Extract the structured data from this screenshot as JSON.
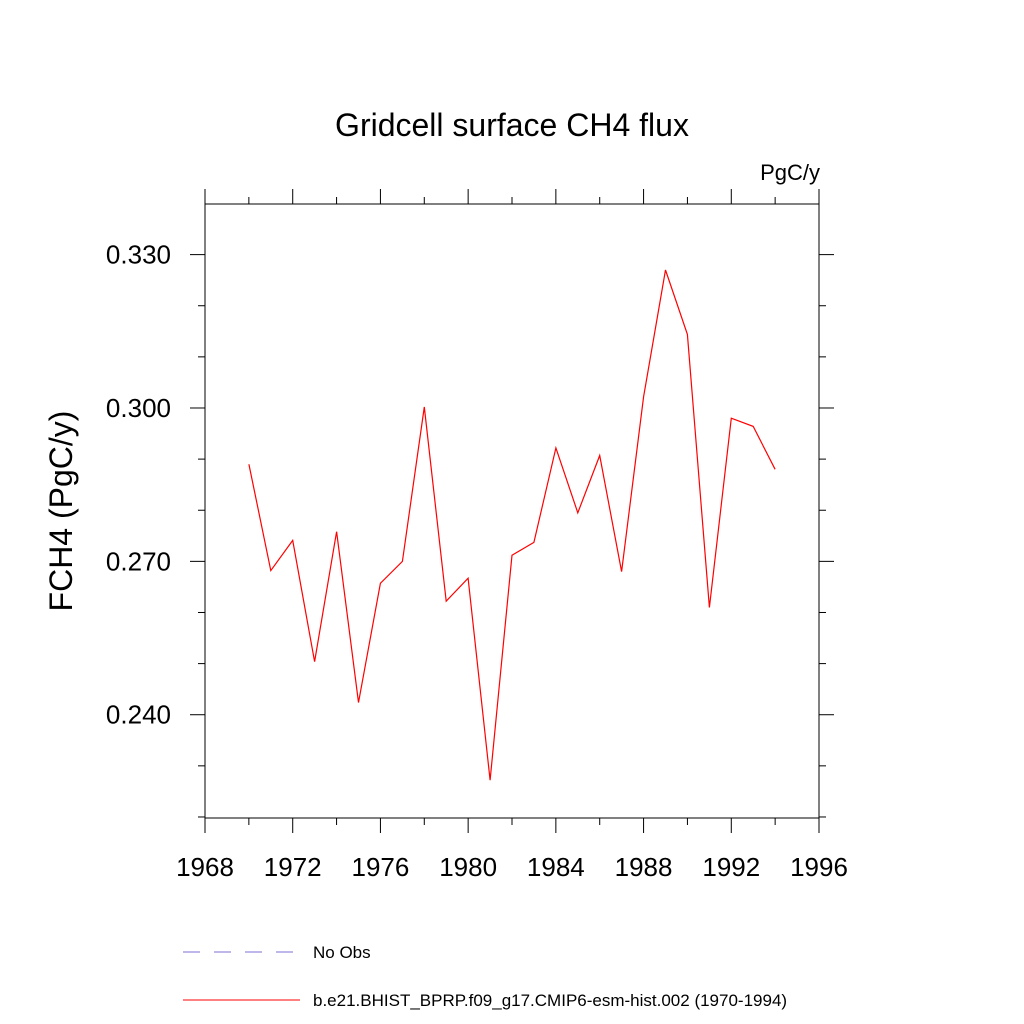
{
  "chart_data": {
    "type": "line",
    "title": "Gridcell surface CH4 flux",
    "units_label": "PgC/y",
    "ylabel": "FCH4  (PgC/y)",
    "xlabel": "",
    "xlim": [
      1968,
      1996
    ],
    "ylim": [
      0.2198,
      0.3399
    ],
    "x_ticks": [
      1968,
      1972,
      1976,
      1980,
      1984,
      1988,
      1992,
      1996
    ],
    "x_tick_labels": [
      "1968",
      "1972",
      "1976",
      "1980",
      "1984",
      "1988",
      "1992",
      "1996"
    ],
    "y_ticks": [
      0.24,
      0.27,
      0.3,
      0.33
    ],
    "y_tick_labels": [
      "0.240",
      "0.270",
      "0.300",
      "0.330"
    ],
    "y_minor_step": 0.01,
    "x_minor_step": 2,
    "grid": false,
    "legend_position": "bottom",
    "series": [
      {
        "name": "b.e21.BHIST_BPRP.f09_g17.CMIP6-esm-hist.002 (1970-1994)",
        "color": "#ff0000",
        "style": "solid",
        "x": [
          1970,
          1971,
          1972,
          1973,
          1974,
          1975,
          1976,
          1977,
          1978,
          1979,
          1980,
          1981,
          1982,
          1983,
          1984,
          1985,
          1986,
          1987,
          1988,
          1989,
          1990,
          1991,
          1992,
          1993,
          1994
        ],
        "y": [
          0.289,
          0.2682,
          0.2741,
          0.2504,
          0.2758,
          0.2424,
          0.2657,
          0.27,
          0.3002,
          0.2622,
          0.2667,
          0.2272,
          0.2712,
          0.2737,
          0.2922,
          0.2795,
          0.2907,
          0.268,
          0.3022,
          0.327,
          0.3144,
          0.261,
          0.298,
          0.2964,
          0.288
        ]
      }
    ],
    "legend": [
      {
        "label": "No Obs",
        "color": "#7b6fd6",
        "style": "dashed"
      },
      {
        "label": "b.e21.BHIST_BPRP.f09_g17.CMIP6-esm-hist.002 (1970-1994)",
        "color": "#ff0000",
        "style": "solid"
      }
    ]
  }
}
